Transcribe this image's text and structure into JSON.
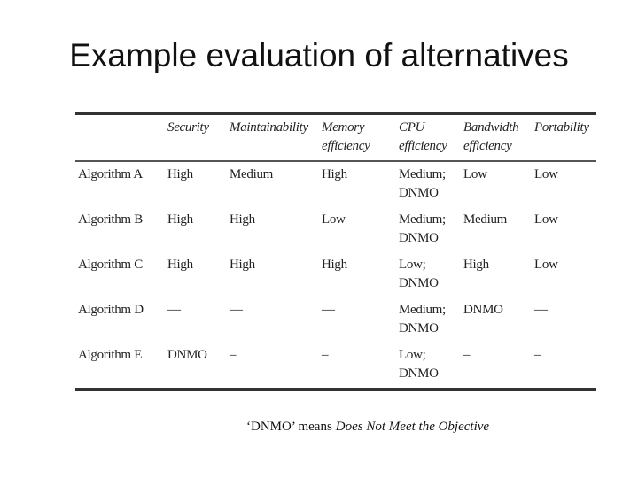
{
  "title": "Example evaluation of alternatives",
  "table": {
    "columns": [
      "Security",
      "Maintainability",
      "Memory efficiency",
      "CPU efficiency",
      "Bandwidth efficiency",
      "Portability"
    ],
    "rows": [
      {
        "name": "Algorithm A",
        "cells": [
          "High",
          "Medium",
          "High",
          "Medium; DNMO",
          "Low",
          "Low"
        ]
      },
      {
        "name": "Algorithm B",
        "cells": [
          "High",
          "High",
          "Low",
          "Medium; DNMO",
          "Medium",
          "Low"
        ]
      },
      {
        "name": "Algorithm C",
        "cells": [
          "High",
          "High",
          "High",
          "Low; DNMO",
          "High",
          "Low"
        ]
      },
      {
        "name": "Algorithm D",
        "cells": [
          "—",
          "—",
          "—",
          "Medium; DNMO",
          "DNMO",
          "—"
        ]
      },
      {
        "name": "Algorithm E",
        "cells": [
          "DNMO",
          "–",
          "–",
          "Low; DNMO",
          "–",
          "–"
        ]
      }
    ]
  },
  "footnote": {
    "prefix": "‘DNMO’ means",
    "emphasis": "Does Not Meet the Objective"
  }
}
